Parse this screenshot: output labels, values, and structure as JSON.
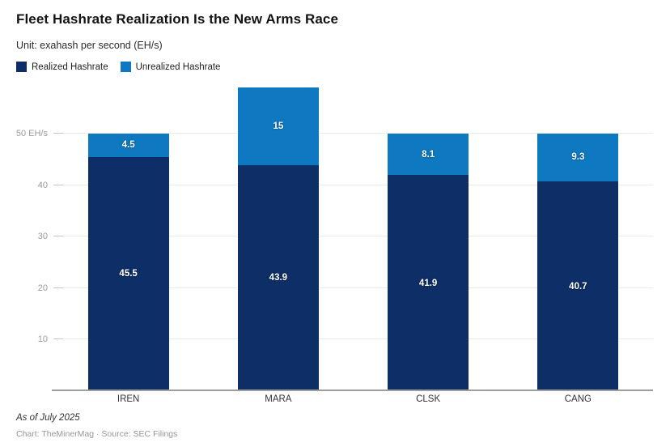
{
  "header": {
    "title": "Fleet Hashrate Realization Is the New Arms Race",
    "subtitle": "Unit: exahash per second (EH/s)"
  },
  "chart_data": {
    "type": "bar",
    "stacked": true,
    "title": "Fleet Hashrate Realization Is the New Arms Race",
    "unit_label": "exahash per second (EH/s)",
    "categories": [
      "IREN",
      "MARA",
      "CLSK",
      "CANG"
    ],
    "series": [
      {
        "name": "Realized Hashrate",
        "color": "#0d2e66",
        "values": [
          45.5,
          43.9,
          41.9,
          40.7
        ]
      },
      {
        "name": "Unrealized Hashrate",
        "color": "#0e79c0",
        "values": [
          4.5,
          15,
          8.1,
          9.3
        ]
      }
    ],
    "ylim": [
      0,
      60.2
    ],
    "yticks": [
      {
        "value": 10,
        "label": "10"
      },
      {
        "value": 20,
        "label": "20"
      },
      {
        "value": 30,
        "label": "30"
      },
      {
        "value": 40,
        "label": "40"
      },
      {
        "value": 50,
        "label": "50 EH/s"
      }
    ],
    "grid": true,
    "legend_position": "top-left"
  },
  "colors": {
    "grid_line": "#eaeaea",
    "grid_tick": "#c4c4c4",
    "axis_line": "#9e9e9e",
    "ytick_text": "#9b9b9b",
    "xtick_text": "#333333"
  },
  "footer": {
    "note": "As of July 2025",
    "credit": "Chart: TheMinerMag · Source: SEC Filings"
  }
}
